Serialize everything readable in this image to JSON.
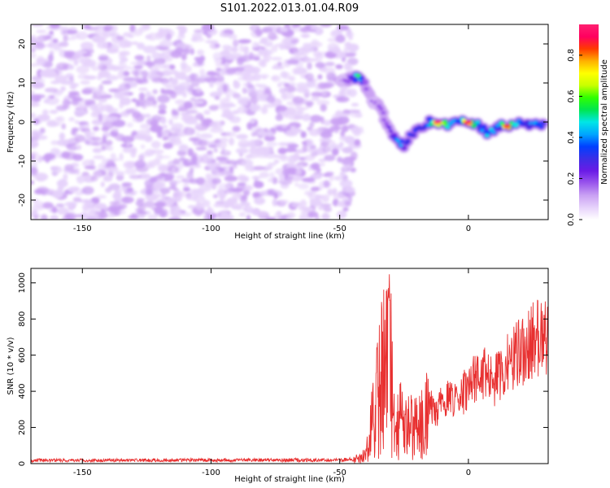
{
  "figure": {
    "title": "S101.2022.013.01.04.R09"
  },
  "colors": {
    "snr_line": "#e83030",
    "colormap": [
      "#ffffff",
      "#e6d2fb",
      "#c9a0f3",
      "#9a55ec",
      "#6a1be6",
      "#3b2ee6",
      "#0040ff",
      "#00a6ff",
      "#00e6e6",
      "#00e650",
      "#30ff00",
      "#c8ff00",
      "#ffff00",
      "#ffb000",
      "#ff3a00",
      "#ff0060",
      "#ff2070"
    ]
  },
  "chart_data": [
    {
      "type": "heatmap",
      "title": "S101.2022.013.01.04.R09",
      "xlabel": "Height of straight line (km)",
      "ylabel": "Frequency (Hz)",
      "xlim": [
        -170,
        31
      ],
      "ylim": [
        -25,
        25
      ],
      "x_ticks": [
        -150,
        -100,
        -50,
        0
      ],
      "y_ticks": [
        -20,
        -10,
        0,
        10,
        20
      ],
      "colorbar": {
        "label": "Normalized spectral amplitude",
        "range": [
          0,
          0.95
        ],
        "ticks": [
          0.0,
          0.2,
          0.4,
          0.6,
          0.8
        ]
      },
      "noise_region": {
        "x_range": [
          -170,
          -45
        ],
        "amplitude_range": [
          0.05,
          0.15
        ]
      },
      "signal_track": [
        {
          "x": -50,
          "freq": 10,
          "amp": 0.12
        },
        {
          "x": -46,
          "freq": 11,
          "amp": 0.2
        },
        {
          "x": -43,
          "freq": 11.5,
          "amp": 0.55
        },
        {
          "x": -40,
          "freq": 9,
          "amp": 0.2
        },
        {
          "x": -37,
          "freq": 5,
          "amp": 0.15
        },
        {
          "x": -34,
          "freq": 4,
          "amp": 0.18
        },
        {
          "x": -32,
          "freq": -1,
          "amp": 0.2
        },
        {
          "x": -29,
          "freq": -4,
          "amp": 0.3
        },
        {
          "x": -27,
          "freq": -5,
          "amp": 0.45
        },
        {
          "x": -25,
          "freq": -6,
          "amp": 0.3
        },
        {
          "x": -22,
          "freq": -3,
          "amp": 0.35
        },
        {
          "x": -18,
          "freq": -1,
          "amp": 0.3
        },
        {
          "x": -15,
          "freq": 0,
          "amp": 0.4
        },
        {
          "x": -12,
          "freq": 0,
          "amp": 0.95
        },
        {
          "x": -8,
          "freq": -1,
          "amp": 0.5
        },
        {
          "x": -4,
          "freq": 0,
          "amp": 0.4
        },
        {
          "x": 0,
          "freq": 0,
          "amp": 0.9
        },
        {
          "x": 4,
          "freq": -1,
          "amp": 0.45
        },
        {
          "x": 8,
          "freq": -3,
          "amp": 0.5
        },
        {
          "x": 12,
          "freq": -1,
          "amp": 0.4
        },
        {
          "x": 15,
          "freq": -1,
          "amp": 0.85
        },
        {
          "x": 19,
          "freq": 0,
          "amp": 0.45
        },
        {
          "x": 23,
          "freq": -0.5,
          "amp": 0.4
        },
        {
          "x": 27,
          "freq": -0.5,
          "amp": 0.45
        },
        {
          "x": 30,
          "freq": -0.5,
          "amp": 0.3
        }
      ]
    },
    {
      "type": "line",
      "xlabel": "Height of straight line (km)",
      "ylabel": "SNR (10 * v/v)",
      "xlim": [
        -170,
        31
      ],
      "ylim": [
        0,
        1080
      ],
      "x_ticks": [
        -150,
        -100,
        -50,
        0
      ],
      "y_ticks": [
        0,
        200,
        400,
        600,
        800,
        1000
      ],
      "series": [
        {
          "x": [
            -170,
            -50,
            -45,
            -40,
            -38,
            -35,
            -33,
            -31,
            -30,
            -28,
            -25,
            -20,
            -16,
            -12,
            -8,
            -4,
            0,
            5,
            8,
            10,
            15,
            20,
            25,
            30
          ],
          "values": [
            20,
            22,
            25,
            60,
            250,
            500,
            700,
            1060,
            500,
            350,
            280,
            250,
            380,
            330,
            450,
            400,
            500,
            560,
            580,
            520,
            640,
            700,
            780,
            820
          ]
        }
      ]
    }
  ]
}
